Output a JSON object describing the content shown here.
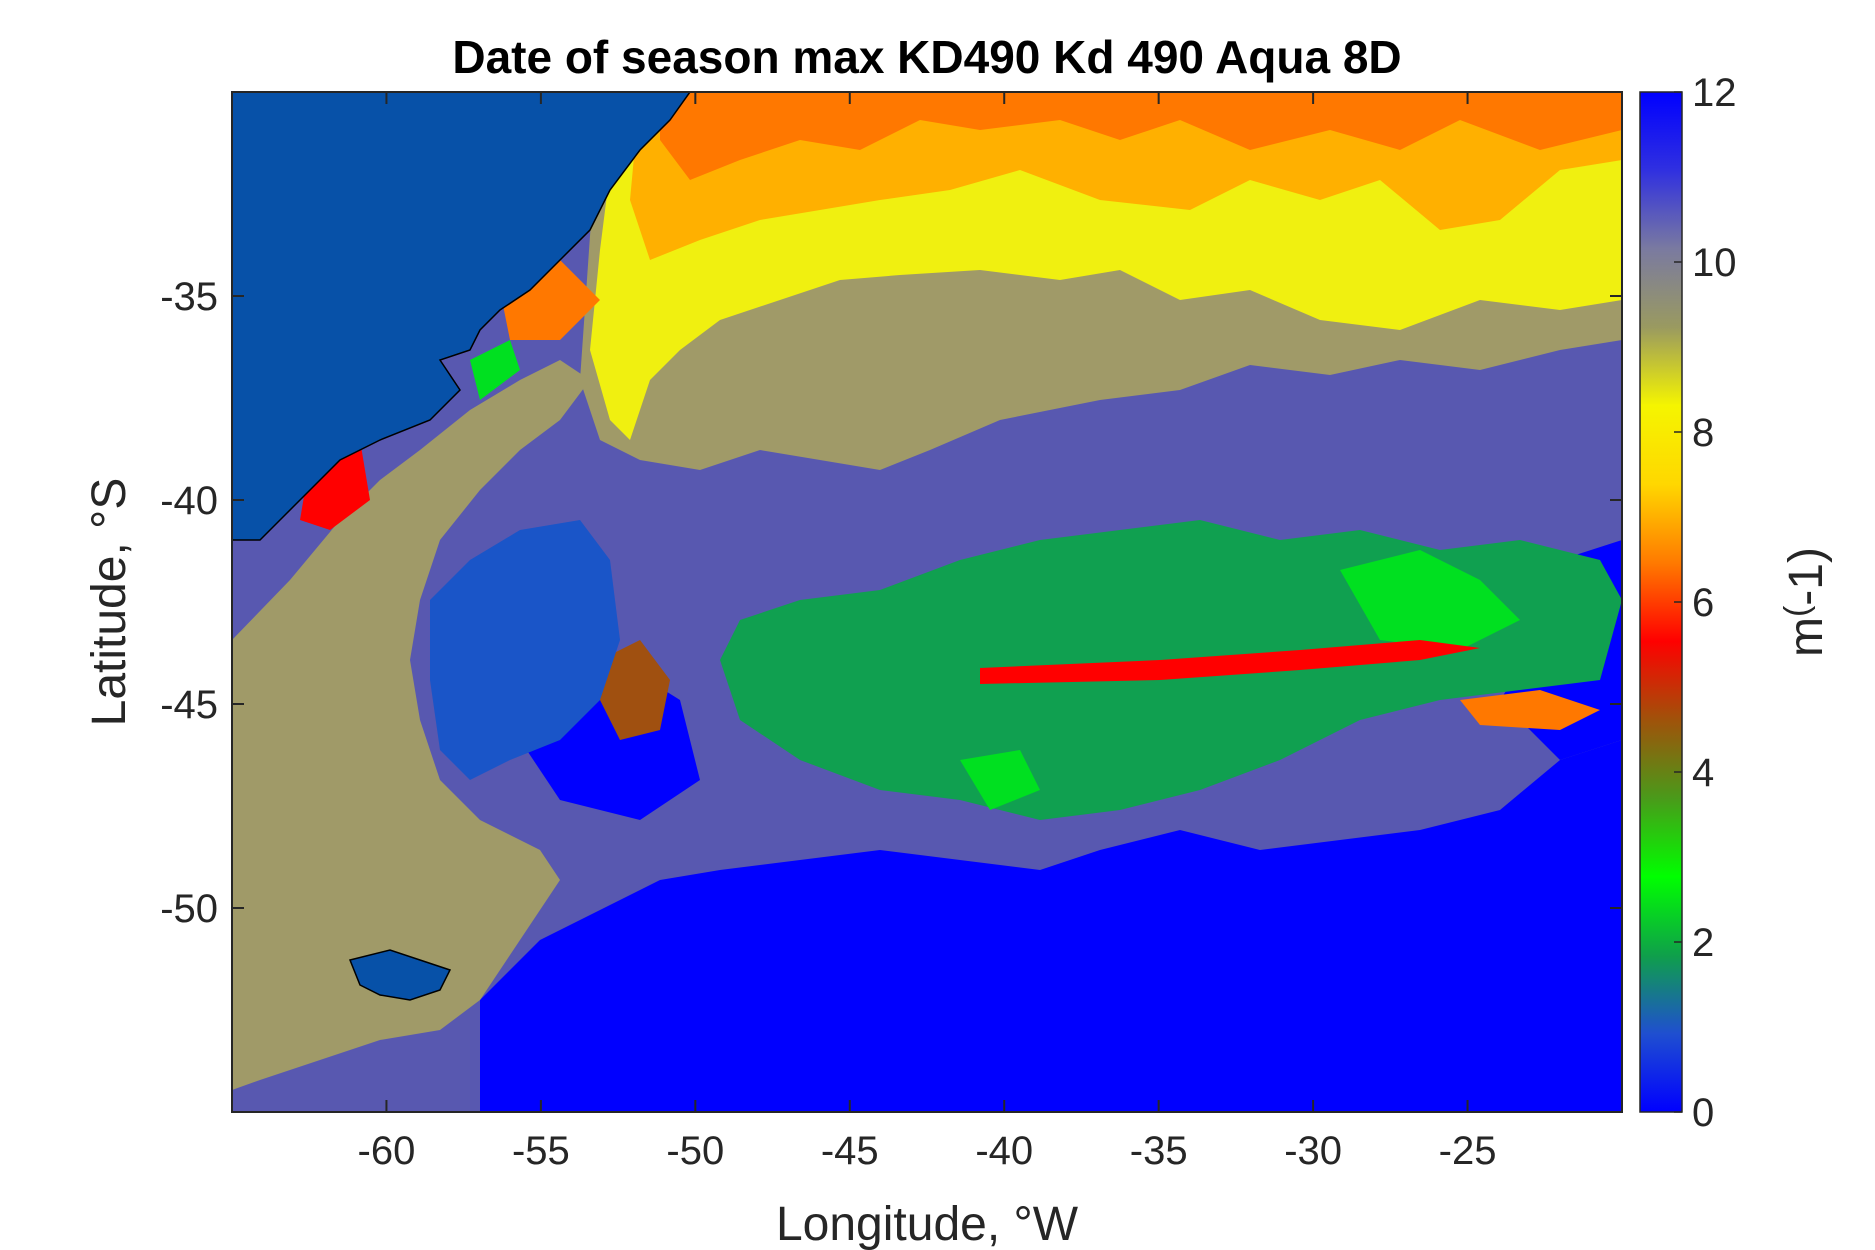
{
  "figure": {
    "title": "Date of season max KD490 Kd 490 Aqua 8D",
    "x_axis": {
      "label": "Longitude, °W",
      "range": [
        -65,
        -20
      ],
      "ticks": [
        -60,
        -55,
        -50,
        -45,
        -40,
        -35,
        -30,
        -25
      ],
      "tick_labels": [
        "-60",
        "-55",
        "-50",
        "-45",
        "-40",
        "-35",
        "-30",
        "-25"
      ]
    },
    "y_axis": {
      "label": "Latitude, °S",
      "range": [
        -55,
        -30
      ],
      "ticks": [
        -35,
        -40,
        -45,
        -50
      ],
      "tick_labels": [
        "-35",
        "-40",
        "-45",
        "-50"
      ]
    },
    "colorbar": {
      "label": "m(-1)",
      "label_base": "m",
      "label_sup": "(",
      "label_rest": "-1)",
      "range": [
        0,
        12
      ],
      "ticks": [
        0,
        2,
        4,
        6,
        8,
        10,
        12
      ],
      "tick_labels": [
        "0",
        "2",
        "4",
        "6",
        "8",
        "10",
        "12"
      ],
      "colormap_stops": [
        "#0000ff",
        "#1f4fd0",
        "#0fa04a",
        "#00ff00",
        "#4a9a1a",
        "#a0520a",
        "#ff0000",
        "#ff7a00",
        "#ffd700",
        "#f5f500",
        "#9a9a60",
        "#7a7aa0",
        "#3030e0",
        "#0000ff"
      ]
    },
    "colors": {
      "land": "#0751a8",
      "land_edge": "#000000",
      "value_0": "#0000ff",
      "value_1": "#1a55c8",
      "value_2": "#10a050",
      "value_3": "#00e020",
      "value_5": "#a05010",
      "value_6": "#ff0000",
      "value_7": "#ff7800",
      "value_8": "#ffb000",
      "value_9": "#f0f010",
      "value_10": "#a09a68",
      "value_11": "#5858b0"
    }
  }
}
